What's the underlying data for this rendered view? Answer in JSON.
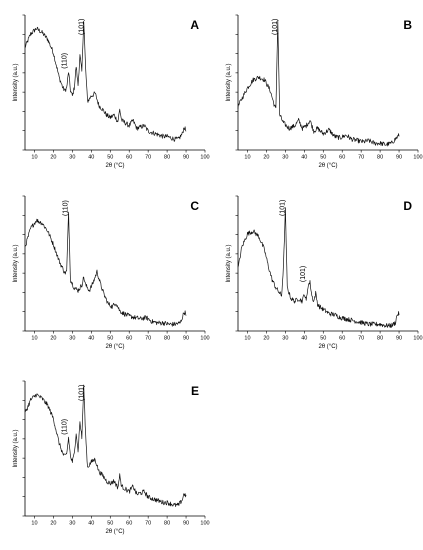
{
  "figure": {
    "panel_count": 5,
    "colors": {
      "trace": "#111111",
      "axes": "#000000",
      "background": "#ffffff"
    }
  },
  "chart_data": [
    {
      "type": "line",
      "panel_label": "A",
      "xlabel": "2θ (°C)",
      "ylabel": "Intensity (a.u.)",
      "xlim": [
        5,
        100
      ],
      "xticks": [
        "10",
        "20",
        "30",
        "40",
        "50",
        "60",
        "70",
        "80",
        "90",
        "100"
      ],
      "y_tick_labels": false,
      "annotations": [
        {
          "text": "(110)",
          "x": 27.5
        },
        {
          "text": "(101)",
          "x": 36.5
        }
      ],
      "x": [
        5,
        8,
        11,
        14,
        17,
        20,
        23,
        25,
        26,
        27,
        28,
        29,
        30,
        31,
        32,
        33,
        34,
        35,
        36,
        37,
        38,
        39,
        40,
        42,
        44,
        46,
        48,
        50,
        52,
        54,
        55,
        56,
        58,
        60,
        62,
        64,
        66,
        68,
        70,
        72,
        74,
        76,
        78,
        80,
        82,
        84,
        86,
        88,
        89,
        90
      ],
      "y": [
        0.76,
        0.86,
        0.9,
        0.87,
        0.82,
        0.72,
        0.54,
        0.46,
        0.44,
        0.46,
        0.58,
        0.44,
        0.4,
        0.46,
        0.62,
        0.48,
        0.7,
        0.58,
        0.96,
        0.6,
        0.36,
        0.38,
        0.4,
        0.42,
        0.33,
        0.3,
        0.26,
        0.24,
        0.26,
        0.21,
        0.3,
        0.22,
        0.2,
        0.18,
        0.22,
        0.16,
        0.17,
        0.18,
        0.14,
        0.13,
        0.12,
        0.11,
        0.1,
        0.1,
        0.09,
        0.08,
        0.08,
        0.12,
        0.17,
        0.14
      ]
    },
    {
      "type": "line",
      "panel_label": "B",
      "xlabel": "2θ (°C)",
      "ylabel": "Intensity (a.u.)",
      "xlim": [
        5,
        100
      ],
      "xticks": [
        "10",
        "20",
        "30",
        "40",
        "50",
        "60",
        "70",
        "80",
        "90",
        "100"
      ],
      "y_tick_labels": false,
      "annotations": [
        {
          "text": "(101)",
          "x": 26
        }
      ],
      "x": [
        5,
        7,
        10,
        13,
        16,
        19,
        22,
        24,
        25,
        26,
        27,
        29,
        32,
        35,
        37,
        39,
        41,
        43,
        45,
        47,
        50,
        53,
        56,
        59,
        62,
        65,
        68,
        71,
        74,
        77,
        80,
        83,
        86,
        88,
        90
      ],
      "y": [
        0.32,
        0.38,
        0.46,
        0.52,
        0.54,
        0.52,
        0.44,
        0.34,
        0.3,
        0.96,
        0.26,
        0.2,
        0.16,
        0.18,
        0.22,
        0.16,
        0.18,
        0.22,
        0.14,
        0.16,
        0.12,
        0.15,
        0.1,
        0.09,
        0.11,
        0.08,
        0.07,
        0.06,
        0.07,
        0.05,
        0.05,
        0.04,
        0.05,
        0.08,
        0.11
      ]
    },
    {
      "type": "line",
      "panel_label": "C",
      "xlabel": "2θ (°C)",
      "ylabel": "Intensity (a.u.)",
      "xlim": [
        5,
        100
      ],
      "xticks": [
        "10",
        "20",
        "30",
        "40",
        "50",
        "60",
        "70",
        "80",
        "90",
        "100"
      ],
      "y_tick_labels": false,
      "annotations": [
        {
          "text": "(110)",
          "x": 28
        }
      ],
      "x": [
        5,
        8,
        11,
        14,
        17,
        20,
        23,
        25,
        26,
        27,
        28,
        29,
        31,
        33,
        35,
        36,
        37,
        39,
        41,
        43,
        45,
        47,
        49,
        51,
        53,
        55,
        57,
        60,
        63,
        66,
        69,
        72,
        75,
        78,
        81,
        84,
        87,
        88,
        89,
        90
      ],
      "y": [
        0.62,
        0.76,
        0.82,
        0.8,
        0.74,
        0.64,
        0.52,
        0.46,
        0.43,
        0.44,
        0.88,
        0.38,
        0.32,
        0.3,
        0.34,
        0.4,
        0.34,
        0.3,
        0.36,
        0.44,
        0.34,
        0.26,
        0.2,
        0.18,
        0.21,
        0.15,
        0.13,
        0.11,
        0.1,
        0.09,
        0.1,
        0.07,
        0.06,
        0.06,
        0.05,
        0.05,
        0.06,
        0.1,
        0.14,
        0.13
      ]
    },
    {
      "type": "line",
      "panel_label": "D",
      "xlabel": "2θ (°C)",
      "ylabel": "Intensity (a.u.)",
      "xlim": [
        5,
        100
      ],
      "xticks": [
        "10",
        "20",
        "30",
        "40",
        "50",
        "60",
        "70",
        "80",
        "90",
        "100"
      ],
      "y_tick_labels": false,
      "annotations": [
        {
          "text": "(101)",
          "x": 30
        },
        {
          "text": "(101)",
          "x": 41
        }
      ],
      "x": [
        5,
        7,
        10,
        13,
        16,
        19,
        21,
        23,
        25,
        27,
        28,
        29,
        30,
        31,
        33,
        35,
        37,
        39,
        40,
        41,
        42,
        43,
        44,
        45,
        46,
        47,
        48,
        50,
        53,
        56,
        59,
        62,
        65,
        68,
        71,
        74,
        77,
        80,
        83,
        86,
        88,
        89,
        90
      ],
      "y": [
        0.46,
        0.62,
        0.72,
        0.74,
        0.7,
        0.6,
        0.48,
        0.38,
        0.32,
        0.28,
        0.26,
        0.48,
        0.9,
        0.32,
        0.24,
        0.22,
        0.24,
        0.22,
        0.28,
        0.22,
        0.34,
        0.36,
        0.26,
        0.22,
        0.28,
        0.2,
        0.18,
        0.16,
        0.13,
        0.12,
        0.1,
        0.09,
        0.08,
        0.07,
        0.06,
        0.05,
        0.05,
        0.05,
        0.04,
        0.04,
        0.06,
        0.12,
        0.13
      ]
    },
    {
      "type": "line",
      "panel_label": "E",
      "xlabel": "2θ (°C)",
      "ylabel": "Intensity (a.u.)",
      "xlim": [
        5,
        100
      ],
      "xticks": [
        "10",
        "20",
        "30",
        "40",
        "50",
        "60",
        "70",
        "80",
        "90",
        "100"
      ],
      "y_tick_labels": false,
      "annotations": [
        {
          "text": "(110)",
          "x": 27.5
        },
        {
          "text": "(101)",
          "x": 36.5
        }
      ],
      "x": [
        5,
        8,
        11,
        14,
        17,
        20,
        23,
        25,
        26,
        27,
        28,
        29,
        30,
        31,
        32,
        33,
        34,
        35,
        36,
        37,
        38,
        39,
        40,
        42,
        44,
        46,
        48,
        50,
        52,
        54,
        55,
        56,
        58,
        60,
        62,
        64,
        66,
        68,
        70,
        72,
        74,
        76,
        78,
        80,
        82,
        84,
        86,
        88,
        89,
        90
      ],
      "y": [
        0.76,
        0.86,
        0.9,
        0.87,
        0.82,
        0.72,
        0.54,
        0.46,
        0.44,
        0.46,
        0.58,
        0.44,
        0.4,
        0.46,
        0.62,
        0.48,
        0.7,
        0.58,
        0.96,
        0.6,
        0.36,
        0.38,
        0.4,
        0.42,
        0.33,
        0.3,
        0.26,
        0.24,
        0.26,
        0.21,
        0.3,
        0.22,
        0.2,
        0.18,
        0.22,
        0.16,
        0.17,
        0.18,
        0.14,
        0.13,
        0.12,
        0.11,
        0.1,
        0.1,
        0.09,
        0.08,
        0.08,
        0.12,
        0.17,
        0.14
      ]
    }
  ]
}
